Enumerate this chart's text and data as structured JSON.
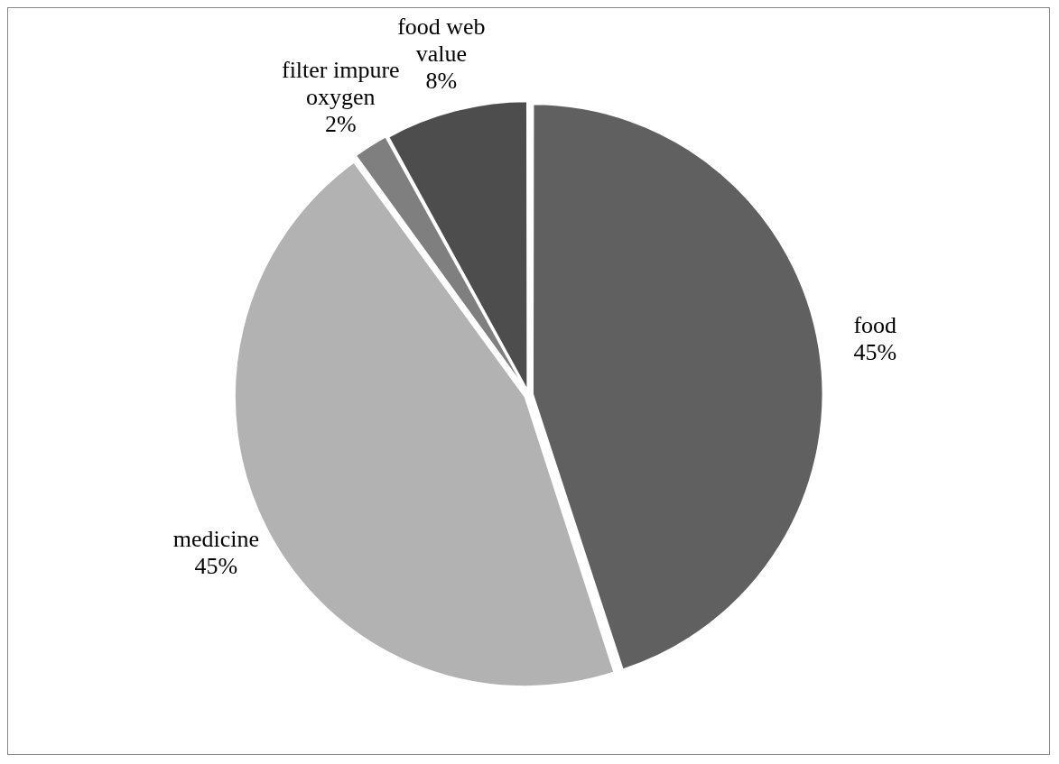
{
  "chart_data": {
    "type": "pie",
    "categories": [
      "food",
      "medicine",
      "filter impure oxygen",
      "food web value"
    ],
    "values": [
      45,
      45,
      2,
      8
    ],
    "colors": [
      "#606060",
      "#b2b2b2",
      "#7f7f7f",
      "#4d4d4d"
    ],
    "value_labels": [
      "45%",
      "45%",
      "2%",
      "8%"
    ],
    "legend": false
  }
}
